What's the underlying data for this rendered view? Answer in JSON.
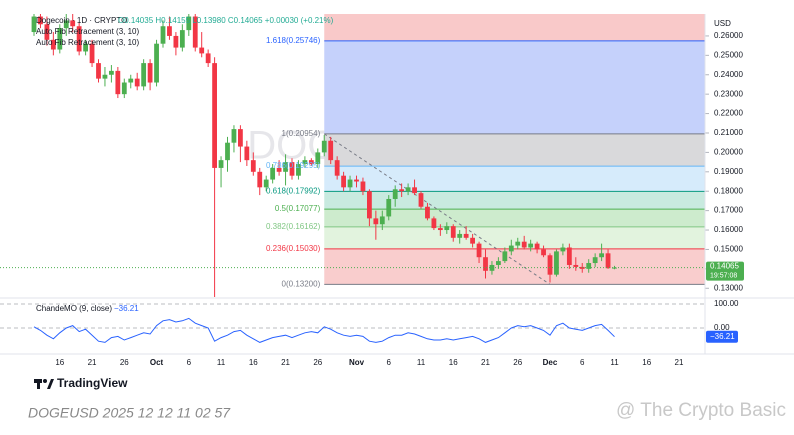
{
  "chart_data": [
    {
      "type": "candlestick",
      "title": "Dogecoin · 1D · CRYPTO",
      "legend_values": "O0.14035 H0.14155 L0.13980 C0.14065 +0.00030 (+0.21%)",
      "indicator_labels": [
        "Auto Fib Retracement (3, 10)",
        "Auto Fib Retracement (3, 10)"
      ],
      "watermark": "DOGEUSD, 1D",
      "currency": "USD",
      "countdown": "19:57:08",
      "categories": [
        null,
        null,
        null,
        null,
        "16",
        null,
        null,
        null,
        null,
        "21",
        null,
        null,
        null,
        null,
        "26",
        null,
        null,
        null,
        null,
        "Oct",
        null,
        null,
        null,
        null,
        "6",
        null,
        null,
        null,
        null,
        "11",
        null,
        null,
        null,
        null,
        "16",
        null,
        null,
        null,
        null,
        "21",
        null,
        null,
        null,
        null,
        "26",
        null,
        null,
        null,
        null,
        null,
        "Nov",
        null,
        null,
        null,
        null,
        "6",
        null,
        null,
        null,
        null,
        "11",
        null,
        null,
        null,
        null,
        "16",
        null,
        null,
        null,
        null,
        "21",
        null,
        null,
        null,
        null,
        "26",
        null,
        null,
        null,
        null,
        "Dec",
        null,
        null,
        null,
        null,
        "6",
        null,
        null,
        null,
        null,
        "11",
        null,
        null,
        null,
        null,
        "16",
        null,
        null,
        null,
        null,
        "21",
        null
      ],
      "open": [
        0.262,
        0.27,
        0.266,
        0.258,
        0.253,
        0.264,
        0.268,
        0.265,
        0.252,
        0.256,
        0.246,
        0.238,
        0.24,
        0.242,
        0.23,
        0.236,
        0.238,
        0.234,
        0.246,
        0.236,
        0.256,
        0.265,
        0.26,
        0.254,
        0.263,
        0.27,
        0.254,
        0.251,
        0.246,
        0.192,
        0.196,
        0.205,
        0.212,
        0.203,
        0.196,
        0.19,
        0.182,
        0.186,
        0.192,
        0.19,
        0.195,
        0.188,
        0.194,
        0.196,
        0.194,
        0.2,
        0.206,
        0.196,
        0.188,
        0.182,
        0.186,
        0.185,
        0.18,
        0.166,
        0.163,
        0.167,
        0.176,
        0.181,
        0.18,
        0.182,
        0.179,
        0.172,
        0.166,
        0.161,
        0.16,
        0.162,
        0.156,
        0.158,
        0.156,
        0.153,
        0.146,
        0.139,
        0.142,
        0.144,
        0.149,
        0.152,
        0.154,
        0.151,
        0.153,
        0.15,
        0.147,
        0.137,
        0.149,
        0.151,
        0.142,
        0.141,
        0.14,
        0.143,
        0.146,
        0.148,
        0.14035,
        null,
        null,
        null,
        null,
        null,
        null,
        null,
        null,
        null,
        null,
        null
      ],
      "high": [
        0.272,
        0.275,
        0.27,
        0.262,
        0.266,
        0.272,
        0.274,
        0.267,
        0.258,
        0.258,
        0.248,
        0.244,
        0.245,
        0.244,
        0.238,
        0.24,
        0.241,
        0.248,
        0.248,
        0.258,
        0.268,
        0.27,
        0.262,
        0.266,
        0.275,
        0.272,
        0.262,
        0.253,
        0.249,
        0.198,
        0.208,
        0.214,
        0.214,
        0.206,
        0.2,
        0.192,
        0.188,
        0.194,
        0.196,
        0.199,
        0.197,
        0.196,
        0.198,
        0.197,
        0.202,
        0.209,
        0.208,
        0.198,
        0.19,
        0.188,
        0.188,
        0.187,
        0.181,
        0.17,
        0.17,
        0.178,
        0.183,
        0.184,
        0.184,
        0.186,
        0.18,
        0.174,
        0.167,
        0.163,
        0.164,
        0.163,
        0.16,
        0.162,
        0.158,
        0.154,
        0.15,
        0.144,
        0.146,
        0.151,
        0.155,
        0.156,
        0.157,
        0.155,
        0.154,
        0.152,
        0.148,
        0.15,
        0.153,
        0.153,
        0.146,
        0.143,
        0.145,
        0.148,
        0.153,
        0.15,
        0.14155,
        null,
        null,
        null,
        null,
        null,
        null,
        null,
        null,
        null,
        null,
        null
      ],
      "low": [
        0.26,
        0.264,
        0.255,
        0.25,
        0.251,
        0.26,
        0.262,
        0.25,
        0.25,
        0.244,
        0.236,
        0.234,
        0.236,
        0.228,
        0.228,
        0.233,
        0.232,
        0.232,
        0.232,
        0.234,
        0.254,
        0.258,
        0.25,
        0.252,
        0.26,
        0.252,
        0.249,
        0.244,
        0.1,
        0.182,
        0.19,
        0.2,
        0.195,
        0.193,
        0.188,
        0.178,
        0.18,
        0.184,
        0.188,
        0.183,
        0.186,
        0.186,
        0.192,
        0.193,
        0.192,
        0.198,
        0.194,
        0.186,
        0.18,
        0.18,
        0.182,
        0.178,
        0.162,
        0.155,
        0.16,
        0.165,
        0.172,
        0.177,
        0.178,
        0.178,
        0.171,
        0.165,
        0.16,
        0.157,
        0.158,
        0.154,
        0.153,
        0.155,
        0.151,
        0.143,
        0.135,
        0.137,
        0.14,
        0.143,
        0.147,
        0.15,
        0.15,
        0.149,
        0.148,
        0.146,
        0.133,
        0.136,
        0.147,
        0.14,
        0.139,
        0.138,
        0.138,
        0.141,
        0.144,
        0.14,
        0.1398,
        null,
        null,
        null,
        null,
        null,
        null,
        null,
        null,
        null,
        null,
        null
      ],
      "close": [
        0.27,
        0.266,
        0.258,
        0.253,
        0.264,
        0.268,
        0.265,
        0.252,
        0.256,
        0.246,
        0.238,
        0.24,
        0.242,
        0.23,
        0.236,
        0.238,
        0.234,
        0.246,
        0.236,
        0.256,
        0.265,
        0.26,
        0.254,
        0.263,
        0.27,
        0.254,
        0.251,
        0.246,
        0.192,
        0.196,
        0.205,
        0.212,
        0.203,
        0.196,
        0.19,
        0.182,
        0.186,
        0.192,
        0.19,
        0.195,
        0.188,
        0.194,
        0.196,
        0.194,
        0.2,
        0.206,
        0.196,
        0.188,
        0.182,
        0.186,
        0.185,
        0.18,
        0.166,
        0.163,
        0.167,
        0.176,
        0.181,
        0.18,
        0.182,
        0.179,
        0.172,
        0.166,
        0.161,
        0.16,
        0.162,
        0.156,
        0.158,
        0.156,
        0.153,
        0.146,
        0.139,
        0.142,
        0.144,
        0.149,
        0.152,
        0.154,
        0.151,
        0.153,
        0.15,
        0.147,
        0.137,
        0.149,
        0.151,
        0.142,
        0.141,
        0.14,
        0.143,
        0.146,
        0.148,
        0.14035,
        0.14065,
        null,
        null,
        null,
        null,
        null,
        null,
        null,
        null,
        null,
        null,
        null
      ],
      "up_color": "#4caf50",
      "down_color": "#f23645",
      "ylim": [
        0.1255,
        0.2713
      ],
      "yticks": [
        {
          "value": 0.13,
          "label": "0.13000"
        },
        {
          "value": 0.14,
          "label": "0.14000"
        },
        {
          "value": 0.15,
          "label": "0.15000"
        },
        {
          "value": 0.16,
          "label": "0.16000"
        },
        {
          "value": 0.17,
          "label": "0.17000"
        },
        {
          "value": 0.18,
          "label": "0.18000"
        },
        {
          "value": 0.19,
          "label": "0.19000"
        },
        {
          "value": 0.2,
          "label": "0.20000"
        },
        {
          "value": 0.21,
          "label": "0.21000"
        },
        {
          "value": 0.22,
          "label": "0.22000"
        },
        {
          "value": 0.23,
          "label": "0.23000"
        },
        {
          "value": 0.24,
          "label": "0.24000"
        },
        {
          "value": 0.25,
          "label": "0.25000"
        },
        {
          "value": 0.26,
          "label": "0.26000"
        }
      ],
      "fib_levels": [
        {
          "value": 0.25746,
          "label": "1.618(0.25746)",
          "color": "#2962ff",
          "fill": "#f9c9c9"
        },
        {
          "value": 0.20954,
          "label": "1(0.20954)",
          "color": "#787b86",
          "fill": "#c5d1fb"
        },
        {
          "value": 0.19295,
          "label": "0.786(0.19295)",
          "color": "#64b5f6",
          "fill": "#d9d9db"
        },
        {
          "value": 0.17992,
          "label": "0.618(0.17992)",
          "color": "#089981",
          "fill": "#d6ebfb"
        },
        {
          "value": 0.17077,
          "label": "0.5(0.17077)",
          "color": "#4caf50",
          "fill": "#c8eadf"
        },
        {
          "value": 0.16162,
          "label": "0.382(0.16162)",
          "color": "#81c784",
          "fill": "#cdebcd"
        },
        {
          "value": 0.1503,
          "label": "0.236(0.15030)",
          "color": "#f23645",
          "fill": "#e2f3de"
        },
        {
          "value": 0.132,
          "label": "0(0.13200)",
          "color": "#787b86",
          "fill": "#f9cdcd"
        }
      ]
    },
    {
      "type": "line",
      "name": "ChandeMO (9, close)",
      "color": "#2962ff",
      "values": [
        5,
        -10,
        -30,
        -45,
        -20,
        0,
        10,
        -15,
        -5,
        -30,
        -55,
        -60,
        -40,
        -35,
        -50,
        -40,
        -30,
        -20,
        -25,
        10,
        30,
        35,
        25,
        30,
        40,
        20,
        10,
        0,
        -55,
        -40,
        -30,
        -15,
        -10,
        -30,
        -45,
        -60,
        -50,
        -40,
        -35,
        -30,
        -40,
        -30,
        -20,
        -15,
        -20,
        5,
        -5,
        -20,
        -30,
        -35,
        -30,
        -35,
        -55,
        -60,
        -55,
        -40,
        -30,
        -30,
        -20,
        -25,
        -35,
        -45,
        -50,
        -50,
        -45,
        -50,
        -45,
        -40,
        -35,
        -45,
        -60,
        -50,
        -40,
        -20,
        0,
        10,
        5,
        10,
        0,
        -10,
        -30,
        10,
        20,
        0,
        -5,
        -10,
        0,
        10,
        15,
        -10,
        -36.21,
        null,
        null,
        null,
        null,
        null,
        null,
        null,
        null,
        null,
        null,
        null
      ],
      "value_labels": [
        null,
        null,
        null,
        null,
        null,
        null,
        null,
        null,
        null,
        null,
        null,
        null,
        null,
        null,
        null,
        null,
        null,
        null,
        null,
        null,
        null,
        null,
        null,
        null,
        null,
        null,
        null,
        null,
        null,
        null,
        null,
        null,
        null,
        null,
        null,
        null,
        null,
        null,
        null,
        null,
        null,
        null,
        null,
        null,
        null,
        null,
        null,
        null,
        null,
        null,
        null,
        null,
        null,
        null,
        null,
        null,
        null,
        null,
        null,
        null,
        null,
        null,
        null,
        null,
        null,
        null,
        null,
        null,
        null,
        null,
        null,
        null,
        null,
        null,
        null,
        null,
        null,
        null,
        null,
        null,
        null,
        null,
        null,
        null,
        null,
        null,
        null,
        null,
        null,
        null,
        "−36.21",
        null,
        null,
        null,
        null,
        null,
        null,
        null,
        null,
        null,
        null,
        null
      ],
      "ylim": [
        -104,
        121
      ],
      "yticks": [
        {
          "value": 100,
          "label": "100.00"
        },
        {
          "value": 0,
          "label": "0.00"
        }
      ]
    }
  ],
  "footer": {
    "brand": "TradingView",
    "caption": "DOGEUSD 2025 12 12 11 02 57",
    "watermark": "@ The Crypto Basic"
  }
}
